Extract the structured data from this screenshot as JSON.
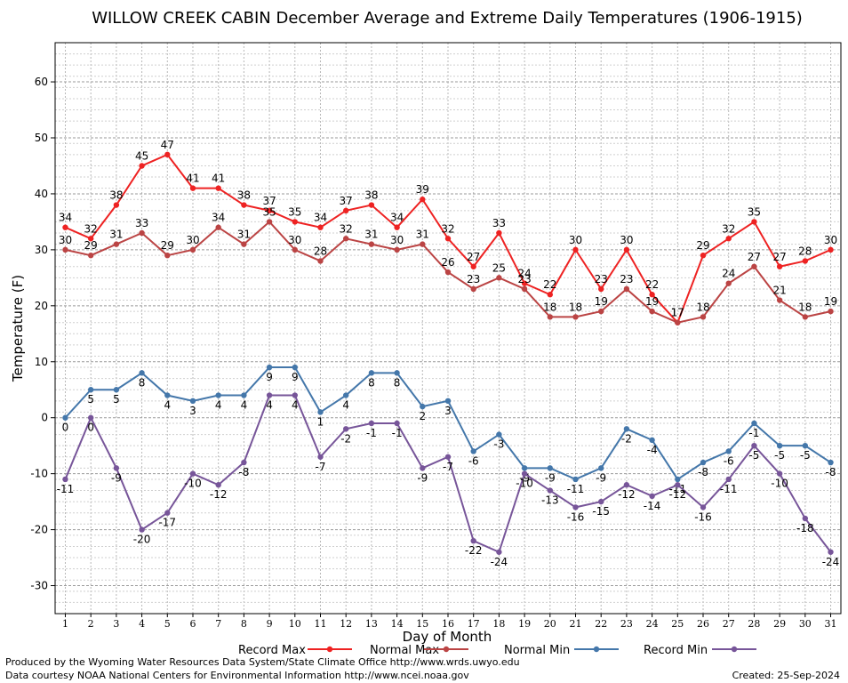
{
  "chart_data": {
    "type": "line",
    "title": "WILLOW CREEK CABIN December Average and Extreme Daily Temperatures (1906-1915)",
    "xlabel": "Day of Month",
    "ylabel": "Temperature (F)",
    "x": [
      1,
      2,
      3,
      4,
      5,
      6,
      7,
      8,
      9,
      10,
      11,
      12,
      13,
      14,
      15,
      16,
      17,
      18,
      19,
      20,
      21,
      22,
      23,
      24,
      25,
      26,
      27,
      28,
      29,
      30,
      31
    ],
    "xlim": [
      0.6,
      31.4
    ],
    "ylim": [
      -35,
      67
    ],
    "yticks": [
      -30,
      -20,
      -10,
      0,
      10,
      20,
      30,
      40,
      50,
      60
    ],
    "grid": true,
    "legend_position": "bottom",
    "series": [
      {
        "name": "Record Max",
        "color": "#ee2222",
        "label_position": "above",
        "values": [
          34,
          32,
          38,
          45,
          47,
          41,
          41,
          38,
          37,
          35,
          34,
          37,
          38,
          34,
          39,
          32,
          27,
          33,
          24,
          22,
          30,
          23,
          30,
          22,
          17,
          29,
          32,
          35,
          27,
          28,
          30
        ]
      },
      {
        "name": "Normal Max",
        "color": "#bb4444",
        "label_position": "above",
        "values": [
          30,
          29,
          31,
          33,
          29,
          30,
          34,
          31,
          35,
          30,
          28,
          32,
          31,
          30,
          31,
          26,
          23,
          25,
          23,
          18,
          18,
          19,
          23,
          19,
          17,
          18,
          24,
          27,
          21,
          18,
          19
        ]
      },
      {
        "name": "Normal Min",
        "color": "#4477aa",
        "label_position": "below",
        "values": [
          0,
          5,
          5,
          8,
          4,
          3,
          4,
          4,
          9,
          9,
          1,
          4,
          8,
          8,
          2,
          3,
          -6,
          -3,
          -9,
          -9,
          -11,
          -9,
          -2,
          -4,
          -11,
          -8,
          -6,
          -1,
          -5,
          -5,
          -8
        ]
      },
      {
        "name": "Record Min",
        "color": "#775599",
        "label_position": "below",
        "values": [
          -11,
          0,
          -9,
          -20,
          -17,
          -10,
          -12,
          -8,
          4,
          4,
          -7,
          -2,
          -1,
          -1,
          -9,
          -7,
          -22,
          -24,
          -10,
          -13,
          -16,
          -15,
          -12,
          -14,
          -12,
          -16,
          -11,
          -5,
          -10,
          -18,
          -24
        ]
      }
    ]
  },
  "footer": {
    "produced_by": "Produced by the Wyoming Water Resources Data System/State Climate Office http://www.wrds.uwyo.edu",
    "courtesy": "Data courtesy NOAA National Centers for Environmental Information http://www.ncei.noaa.gov",
    "created": "Created:  25-Sep-2024"
  }
}
